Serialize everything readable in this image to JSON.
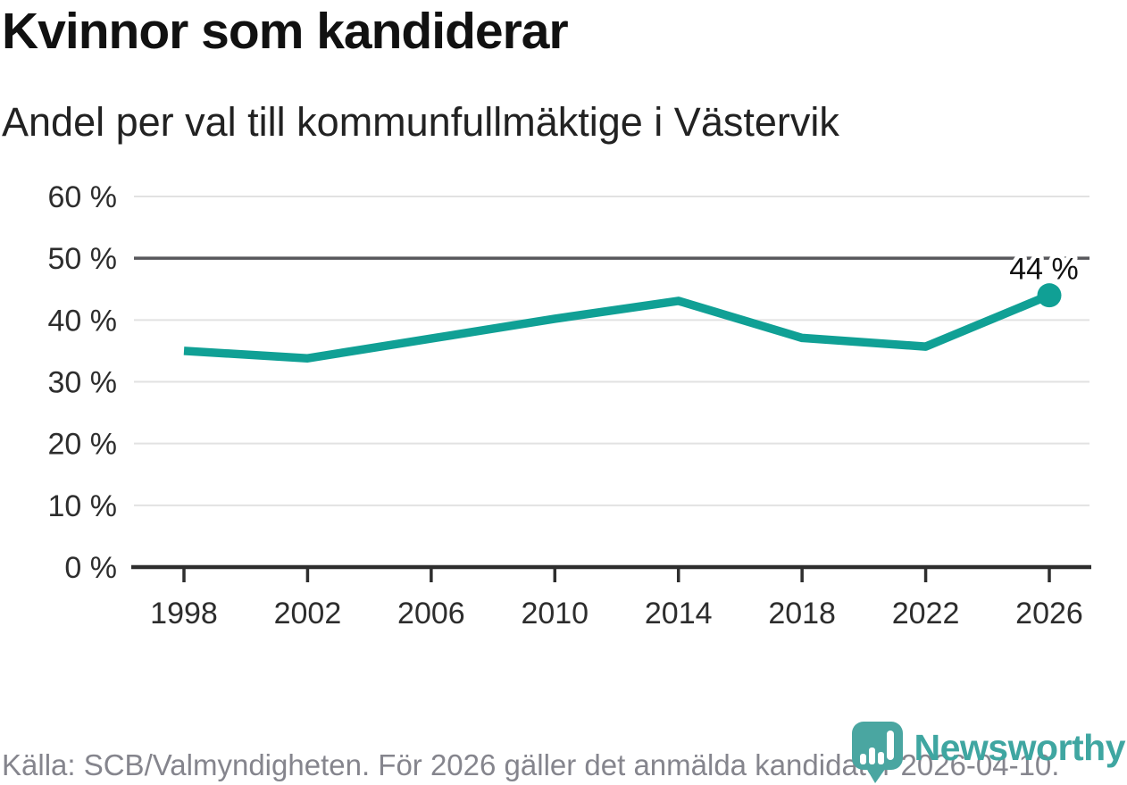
{
  "title": "Kvinnor som kandiderar",
  "subtitle": "Andel per val till kommunfullmäktige i Västervik",
  "footer": {
    "source": "Källa: SCB/Valmyndigheten. För 2026 gäller det anmälda kandidater 2026-04-10.",
    "brand": "Newsworthy"
  },
  "colors": {
    "line": "#10A095",
    "reference_grid": "#57575B",
    "light_grid": "#E2E2E2",
    "axis": "#2E2E2E",
    "tick_label": "#2D2D2D",
    "title_text": "#111111",
    "muted_text": "#85858D",
    "brand_teal": "#4AA6A1",
    "end_label_text": "#111111"
  },
  "chart_data": {
    "type": "line",
    "title": "Kvinnor som kandiderar",
    "subtitle": "Andel per val till kommunfullmäktige i Västervik",
    "x": [
      "1998",
      "2002",
      "2006",
      "2010",
      "2014",
      "2018",
      "2022",
      "2026"
    ],
    "values": [
      35,
      33.8,
      37,
      40.2,
      43.1,
      37.1,
      35.7,
      44
    ],
    "unit": "%",
    "ylim": [
      0,
      60
    ],
    "ytick_step": 10,
    "yticks": [
      "0 %",
      "10 %",
      "20 %",
      "30 %",
      "40 %",
      "50 %",
      "60 %"
    ],
    "reference_line": 50,
    "end_label": "44 %",
    "grid": true,
    "legend": "none"
  }
}
